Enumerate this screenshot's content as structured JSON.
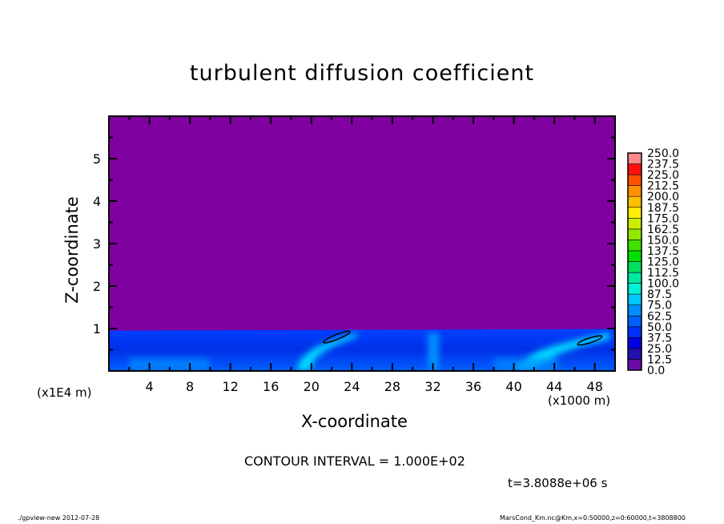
{
  "chart_data": {
    "type": "heatmap",
    "title": "turbulent diffusion coefficient",
    "xlabel": "X-coordinate",
    "ylabel": "Z-coordinate",
    "x_unit_label": "(x1000 m)",
    "y_unit_label": "(x1E4 m)",
    "xlim": [
      0,
      50
    ],
    "ylim": [
      0,
      6
    ],
    "x_ticks": [
      4,
      8,
      12,
      16,
      20,
      24,
      28,
      32,
      36,
      40,
      44,
      48
    ],
    "y_ticks": [
      1,
      2,
      3,
      4,
      5
    ],
    "colorbar": {
      "labels": [
        "0.0",
        "12.5",
        "25.0",
        "37.5",
        "50.0",
        "62.5",
        "75.0",
        "87.5",
        "100.0",
        "112.5",
        "125.0",
        "137.5",
        "150.0",
        "162.5",
        "175.0",
        "187.5",
        "200.0",
        "212.5",
        "225.0",
        "237.5",
        "250.0"
      ],
      "colors": [
        "#6a0aa8",
        "#2210b0",
        "#0000e0",
        "#0030ff",
        "#0060ff",
        "#0090ff",
        "#00c8ff",
        "#00f0d8",
        "#00e8a0",
        "#00e060",
        "#00e000",
        "#40e000",
        "#90e800",
        "#c8f000",
        "#fff000",
        "#ffc000",
        "#ff9000",
        "#ff5000",
        "#ff1010",
        "#ff5858"
      ],
      "top_color": "#ff8888"
    },
    "background_color": "#8000a0",
    "contour_interval": "CONTOUR INTERVAL = 1.000E+02",
    "time": "t=3.8088e+06 s"
  },
  "footer": {
    "left": "./gpview-new  2012-07-28",
    "right": "MarsCond_Km.nc@Km,x=0:50000,z=0:60000,t=3808800"
  }
}
